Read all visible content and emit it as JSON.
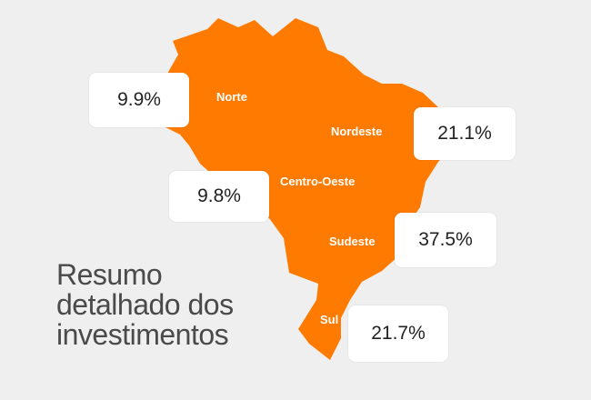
{
  "colors": {
    "background": "#efefef",
    "map_fill": "#ff7a00",
    "box_fill": "#ffffff",
    "caption_text": "#4a4a4a"
  },
  "regions": [
    {
      "name": "Norte",
      "value": "9.9%"
    },
    {
      "name": "Nordeste",
      "value": "21.1%"
    },
    {
      "name": "Centro-Oeste",
      "value": "9.8%"
    },
    {
      "name": "Sudeste",
      "value": "37.5%"
    },
    {
      "name": "Sul",
      "value": "21.7%"
    }
  ],
  "caption": {
    "line1": "Resumo",
    "line2": "detalhado dos",
    "line3": "investimentos"
  }
}
